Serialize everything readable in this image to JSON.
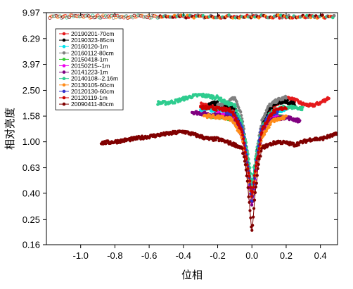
{
  "chart_data": {
    "type": "scatter",
    "xlabel": "位相",
    "ylabel": "相对亮度",
    "xlim": [
      -1.2,
      0.5
    ],
    "ylim": [
      0.16,
      9.97
    ],
    "yscale": "log",
    "x_ticks": [
      "-1.0",
      "-0.8",
      "-0.6",
      "-0.4",
      "-0.2",
      "0.0",
      "0.2",
      "0.4"
    ],
    "y_ticks": [
      "9.97",
      "6.29",
      "3.97",
      "2.50",
      "1.58",
      "1.00",
      "0.63",
      "0.40",
      "0.25",
      "0.16"
    ],
    "legend_position": "top-left",
    "series": [
      {
        "name": "20190201-70cm",
        "color": "#e41a1c",
        "points": [
          [
            -0.3,
            1.95
          ],
          [
            -0.25,
            1.9
          ],
          [
            -0.2,
            1.85
          ],
          [
            -0.15,
            1.8
          ],
          [
            -0.1,
            1.75
          ],
          [
            -0.06,
            1.2
          ],
          [
            -0.03,
            0.7
          ],
          [
            -0.01,
            0.45
          ],
          [
            0.0,
            0.35
          ],
          [
            0.01,
            0.45
          ],
          [
            0.03,
            0.75
          ],
          [
            0.06,
            1.2
          ],
          [
            0.1,
            1.75
          ],
          [
            0.15,
            2.0
          ],
          [
            0.2,
            2.2
          ],
          [
            0.25,
            2.1
          ],
          [
            0.3,
            1.95
          ],
          [
            0.35,
            1.9
          ],
          [
            0.4,
            2.0
          ],
          [
            0.45,
            2.2
          ]
        ]
      },
      {
        "name": "20190323-85cm",
        "color": "#000000",
        "points": [
          [
            -0.25,
            1.95
          ],
          [
            -0.2,
            2.0
          ],
          [
            -0.15,
            1.9
          ],
          [
            -0.1,
            1.85
          ],
          [
            -0.06,
            1.3
          ],
          [
            -0.03,
            0.8
          ],
          [
            -0.01,
            0.5
          ],
          [
            0.0,
            0.38
          ],
          [
            0.01,
            0.5
          ],
          [
            0.03,
            0.85
          ],
          [
            0.06,
            1.3
          ],
          [
            0.1,
            1.8
          ],
          [
            0.15,
            2.0
          ],
          [
            0.2,
            2.05
          ],
          [
            0.25,
            1.95
          ]
        ]
      },
      {
        "name": "20160120-1m",
        "color": "#00e5ee",
        "points": [
          [
            -0.3,
            1.8
          ],
          [
            -0.2,
            1.75
          ],
          [
            -0.12,
            1.7
          ],
          [
            -0.06,
            1.3
          ],
          [
            -0.02,
            0.65
          ],
          [
            0.0,
            0.42
          ],
          [
            0.02,
            0.65
          ],
          [
            0.06,
            1.3
          ],
          [
            0.12,
            1.7
          ],
          [
            0.2,
            1.75
          ]
        ]
      },
      {
        "name": "20160112-80cm",
        "color": "#808080",
        "points": [
          [
            -0.2,
            1.9
          ],
          [
            -0.15,
            2.0
          ],
          [
            -0.1,
            2.2
          ],
          [
            -0.06,
            1.6
          ],
          [
            -0.03,
            0.9
          ],
          [
            0.0,
            0.4
          ],
          [
            0.03,
            0.9
          ],
          [
            0.06,
            1.5
          ],
          [
            0.1,
            1.9
          ],
          [
            0.15,
            2.1
          ],
          [
            0.2,
            2.2
          ]
        ]
      },
      {
        "name": "20150418-1m",
        "color": "#33cc33",
        "points": [
          [
            -0.25,
            1.6
          ],
          [
            -0.18,
            1.55
          ],
          [
            -0.1,
            1.5
          ],
          [
            -0.05,
            1.1
          ],
          [
            -0.02,
            0.55
          ],
          [
            0.0,
            0.35
          ],
          [
            0.02,
            0.55
          ],
          [
            0.05,
            1.1
          ],
          [
            0.1,
            1.45
          ],
          [
            0.18,
            1.6
          ]
        ]
      },
      {
        "name": "20150215--1m",
        "color": "#ee00ee",
        "points": [
          [
            -0.2,
            1.65
          ],
          [
            -0.15,
            1.6
          ],
          [
            -0.1,
            1.55
          ],
          [
            -0.05,
            1.05
          ],
          [
            -0.02,
            0.5
          ],
          [
            0.0,
            0.33
          ],
          [
            0.02,
            0.5
          ],
          [
            0.05,
            1.05
          ],
          [
            0.1,
            1.5
          ],
          [
            0.15,
            1.6
          ]
        ]
      },
      {
        "name": "20141223-1m",
        "color": "#800080",
        "points": [
          [
            -0.35,
            1.7
          ],
          [
            -0.28,
            1.65
          ],
          [
            -0.2,
            1.6
          ],
          [
            -0.12,
            1.55
          ],
          [
            -0.06,
            1.15
          ],
          [
            -0.02,
            0.55
          ],
          [
            0.0,
            0.32
          ],
          [
            0.02,
            0.55
          ],
          [
            0.06,
            1.15
          ],
          [
            0.12,
            1.5
          ],
          [
            0.2,
            1.55
          ],
          [
            0.28,
            1.45
          ]
        ]
      },
      {
        "name": "20140108--2.16m",
        "color": "#2ecc8f",
        "points": [
          [
            -0.55,
            2.0
          ],
          [
            -0.5,
            2.0
          ],
          [
            -0.45,
            2.05
          ],
          [
            -0.4,
            2.15
          ],
          [
            -0.35,
            2.25
          ],
          [
            -0.3,
            2.3
          ],
          [
            -0.25,
            2.25
          ],
          [
            -0.2,
            2.2
          ],
          [
            -0.15,
            2.0
          ],
          [
            -0.1,
            1.9
          ],
          [
            -0.06,
            1.4
          ],
          [
            -0.03,
            0.9
          ],
          [
            -0.01,
            0.6
          ],
          [
            0.0,
            0.45
          ],
          [
            0.01,
            0.6
          ],
          [
            0.03,
            0.9
          ],
          [
            0.06,
            1.3
          ],
          [
            0.1,
            1.6
          ],
          [
            0.15,
            1.8
          ],
          [
            0.2,
            1.85
          ],
          [
            0.25,
            1.85
          ],
          [
            0.3,
            1.8
          ]
        ]
      },
      {
        "name": "20130105-60cm",
        "color": "#ff8c1a",
        "points": [
          [
            -0.28,
            1.6
          ],
          [
            -0.2,
            1.55
          ],
          [
            -0.12,
            1.5
          ],
          [
            -0.06,
            1.1
          ],
          [
            -0.02,
            0.55
          ],
          [
            0.0,
            0.36
          ],
          [
            0.02,
            0.55
          ],
          [
            0.06,
            1.1
          ],
          [
            0.12,
            1.45
          ],
          [
            0.2,
            1.55
          ]
        ]
      },
      {
        "name": "20120130-60cm",
        "color": "#3333cc",
        "points": [
          [
            -0.15,
            1.7
          ],
          [
            -0.1,
            1.65
          ],
          [
            -0.05,
            1.2
          ],
          [
            -0.02,
            0.6
          ],
          [
            0.0,
            0.35
          ],
          [
            0.02,
            0.6
          ],
          [
            0.05,
            1.2
          ],
          [
            0.1,
            1.6
          ],
          [
            0.15,
            1.7
          ]
        ]
      },
      {
        "name": "20120119-1m",
        "color": "#cc0000",
        "points": [
          [
            -0.3,
            1.85
          ],
          [
            -0.2,
            1.8
          ],
          [
            -0.12,
            1.75
          ],
          [
            -0.06,
            1.25
          ],
          [
            -0.02,
            0.6
          ],
          [
            0.0,
            0.38
          ],
          [
            0.02,
            0.6
          ],
          [
            0.06,
            1.25
          ],
          [
            0.12,
            1.7
          ],
          [
            0.2,
            1.85
          ]
        ]
      },
      {
        "name": "20090411-80cm",
        "color": "#800000",
        "points": [
          [
            -0.88,
            0.98
          ],
          [
            -0.8,
            1.0
          ],
          [
            -0.7,
            1.05
          ],
          [
            -0.6,
            1.1
          ],
          [
            -0.5,
            1.15
          ],
          [
            -0.4,
            1.2
          ],
          [
            -0.35,
            1.15
          ],
          [
            -0.3,
            1.1
          ],
          [
            -0.25,
            1.05
          ],
          [
            -0.2,
            1.05
          ],
          [
            -0.15,
            1.0
          ],
          [
            -0.1,
            0.95
          ],
          [
            -0.06,
            0.9
          ],
          [
            -0.04,
            0.7
          ],
          [
            -0.02,
            0.4
          ],
          [
            0.0,
            0.2
          ],
          [
            0.02,
            0.4
          ],
          [
            0.04,
            0.7
          ],
          [
            0.06,
            0.9
          ],
          [
            0.1,
            0.95
          ],
          [
            0.15,
            1.0
          ],
          [
            0.2,
            0.98
          ],
          [
            0.25,
            0.95
          ],
          [
            0.3,
            1.0
          ],
          [
            0.35,
            1.05
          ],
          [
            0.4,
            1.05
          ],
          [
            0.45,
            1.1
          ],
          [
            0.5,
            1.15
          ]
        ]
      }
    ]
  }
}
